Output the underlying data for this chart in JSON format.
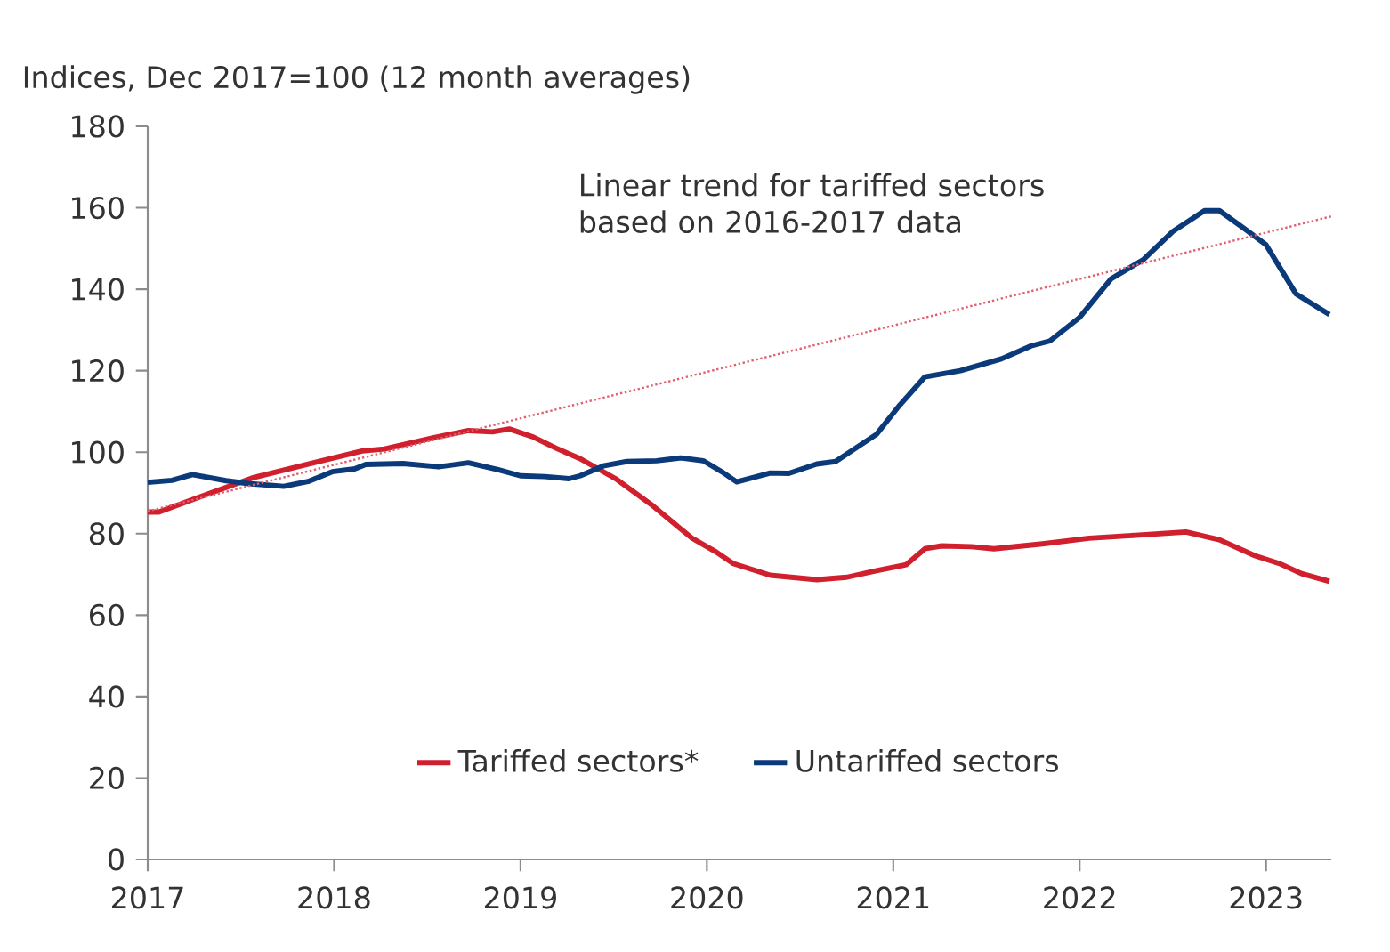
{
  "chart_data": {
    "type": "line",
    "ylabel": "Indices, Dec 2017=100 (12 month averages)",
    "annotations": [
      "Linear trend for tariffed sectors based on 2016-2017 data"
    ],
    "xlim": [
      2017,
      2023.35
    ],
    "xticks": [
      2017,
      2018,
      2019,
      2020,
      2021,
      2022,
      2023
    ],
    "ylim": [
      0,
      180
    ],
    "yticks": [
      0,
      20,
      40,
      60,
      80,
      100,
      120,
      140,
      160,
      180
    ],
    "grid": false,
    "legend": "bottom",
    "marker": "none",
    "series": [
      {
        "name": "Tariffed sectors*",
        "color": "#d0202e",
        "line_style": "solid",
        "x": [
          2017.0,
          2017.06,
          2017.26,
          2017.57,
          2017.89,
          2018.15,
          2018.27,
          2018.53,
          2018.72,
          2018.85,
          2018.94,
          2019.07,
          2019.19,
          2019.32,
          2019.51,
          2019.7,
          2019.92,
          2020.05,
          2020.14,
          2020.34,
          2020.59,
          2020.75,
          2020.91,
          2021.07,
          2021.17,
          2021.26,
          2021.42,
          2021.54,
          2021.8,
          2022.05,
          2022.3,
          2022.57,
          2022.75,
          2022.94,
          2023.07,
          2023.19,
          2023.34
        ],
        "values": [
          85.3,
          85.3,
          88.7,
          93.8,
          97.4,
          100.3,
          100.8,
          103.5,
          105.3,
          105,
          105.7,
          103.7,
          101,
          98.4,
          93.5,
          87.2,
          78.9,
          75.5,
          72.7,
          69.8,
          68.7,
          69.3,
          70.9,
          72.4,
          76.3,
          77,
          76.8,
          76.3,
          77.5,
          78.9,
          79.6,
          80.4,
          78.5,
          74.6,
          72.7,
          70.2,
          68.3
        ]
      },
      {
        "name": "Untariffed sectors",
        "color": "#0b3a7a",
        "line_style": "solid",
        "x": [
          2017.0,
          2017.13,
          2017.24,
          2017.42,
          2017.54,
          2017.73,
          2017.86,
          2017.99,
          2018.11,
          2018.17,
          2018.37,
          2018.56,
          2018.72,
          2018.88,
          2019.0,
          2019.13,
          2019.26,
          2019.32,
          2019.45,
          2019.57,
          2019.73,
          2019.86,
          2019.98,
          2020.08,
          2020.16,
          2020.34,
          2020.44,
          2020.59,
          2020.69,
          2020.91,
          2021.03,
          2021.17,
          2021.36,
          2021.58,
          2021.74,
          2021.84,
          2022.0,
          2022.17,
          2022.34,
          2022.5,
          2022.67,
          2022.75,
          2022.88,
          2023.0,
          2023.16,
          2023.34
        ],
        "values": [
          92.6,
          93.1,
          94.5,
          93,
          92.3,
          91.6,
          92.8,
          95.2,
          95.9,
          97,
          97.2,
          96.4,
          97.4,
          95.7,
          94.2,
          94,
          93.5,
          94.2,
          96.7,
          97.7,
          97.9,
          98.6,
          97.9,
          95.2,
          92.7,
          94.9,
          94.8,
          97.1,
          97.7,
          104.4,
          111.3,
          118.5,
          120,
          122.9,
          126.1,
          127.3,
          133.1,
          142.6,
          147.2,
          154.2,
          159.3,
          159.3,
          155,
          150.9,
          138.9,
          133.8
        ]
      },
      {
        "color": "#e06070",
        "line_style": "dotted",
        "x": [
          2017.0,
          2023.35
        ],
        "values": [
          85.5,
          157.9
        ]
      }
    ]
  }
}
